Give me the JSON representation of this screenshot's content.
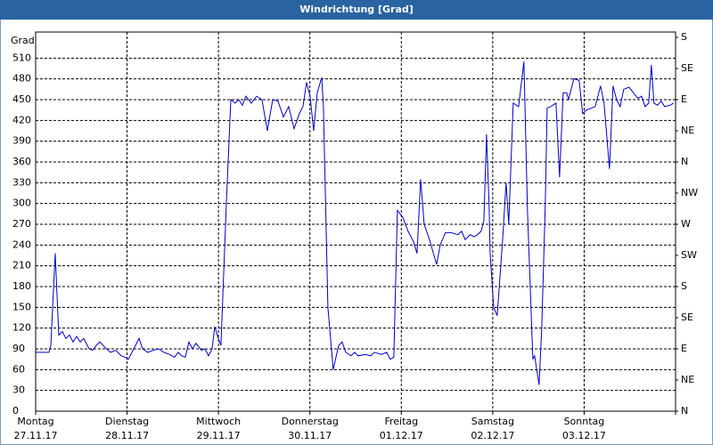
{
  "chart_data": {
    "type": "line",
    "title": "Windrichtung [Grad]",
    "ylabel": "Grad",
    "color": "#0000c8",
    "grid": true,
    "xlim": [
      0,
      7
    ],
    "xticks": [
      {
        "value": 0,
        "label": "Montag",
        "sublabel": "27.11.17"
      },
      {
        "value": 1,
        "label": "Dienstag",
        "sublabel": "28.11.17"
      },
      {
        "value": 2,
        "label": "Mittwoch",
        "sublabel": "29.11.17"
      },
      {
        "value": 3,
        "label": "Donnerstag",
        "sublabel": "30.11.17"
      },
      {
        "value": 4,
        "label": "Freitag",
        "sublabel": "01.12.17"
      },
      {
        "value": 5,
        "label": "Samstag",
        "sublabel": "02.12.17"
      },
      {
        "value": 6,
        "label": "Sonntag",
        "sublabel": "03.12.17"
      },
      {
        "value": 7,
        "label": "",
        "sublabel": ""
      }
    ],
    "ylim": [
      0,
      540
    ],
    "yticks": [
      0,
      30,
      60,
      90,
      120,
      150,
      180,
      210,
      240,
      270,
      300,
      330,
      360,
      390,
      420,
      450,
      480,
      510
    ],
    "y2lim": [
      0,
      540
    ],
    "y2ticks": [
      {
        "value": 0,
        "label": "N"
      },
      {
        "value": 45,
        "label": "NE"
      },
      {
        "value": 90,
        "label": "E"
      },
      {
        "value": 135,
        "label": "SE"
      },
      {
        "value": 180,
        "label": "S"
      },
      {
        "value": 225,
        "label": "SW"
      },
      {
        "value": 270,
        "label": "W"
      },
      {
        "value": 315,
        "label": "NW"
      },
      {
        "value": 360,
        "label": "N"
      },
      {
        "value": 405,
        "label": "NE"
      },
      {
        "value": 450,
        "label": "E"
      },
      {
        "value": 495,
        "label": "SE"
      },
      {
        "value": 540,
        "label": "S"
      }
    ],
    "x": [
      0,
      0.146,
      0.166,
      0.214,
      0.253,
      0.292,
      0.331,
      0.37,
      0.409,
      0.448,
      0.487,
      0.526,
      0.585,
      0.624,
      0.663,
      0.702,
      0.76,
      0.819,
      0.877,
      0.936,
      0.975,
      1.014,
      1.053,
      1.092,
      1.131,
      1.17,
      1.228,
      1.287,
      1.345,
      1.404,
      1.462,
      1.52,
      1.559,
      1.598,
      1.637,
      1.676,
      1.715,
      1.754,
      1.813,
      1.852,
      1.891,
      1.93,
      1.959,
      1.998,
      2.027,
      2.086,
      2.135,
      2.183,
      2.222,
      2.261,
      2.3,
      2.359,
      2.417,
      2.476,
      2.534,
      2.593,
      2.651,
      2.71,
      2.768,
      2.827,
      2.885,
      2.924,
      2.963,
      3.002,
      3.041,
      3.08,
      3.129,
      3.148,
      3.197,
      3.255,
      3.314,
      3.353,
      3.392,
      3.45,
      3.489,
      3.528,
      3.606,
      3.665,
      3.704,
      3.782,
      3.84,
      3.879,
      3.918,
      3.957,
      4.016,
      4.074,
      4.133,
      4.172,
      4.211,
      4.25,
      4.308,
      4.386,
      4.425,
      4.483,
      4.542,
      4.62,
      4.659,
      4.698,
      4.756,
      4.795,
      4.834,
      4.873,
      4.903,
      4.932,
      4.961,
      4.971,
      5.01,
      5.049,
      5.107,
      5.146,
      5.175,
      5.224,
      5.283,
      5.341,
      5.38,
      5.439,
      5.458,
      5.507,
      5.536,
      5.575,
      5.595,
      5.634,
      5.692,
      5.731,
      5.77,
      5.809,
      5.829,
      5.887,
      5.945,
      5.984,
      6.023,
      6.082,
      6.121,
      6.179,
      6.218,
      6.277,
      6.316,
      6.355,
      6.394,
      6.433,
      6.491,
      6.55,
      6.589,
      6.628,
      6.667,
      6.706,
      6.735,
      6.764,
      6.803,
      6.842,
      6.881,
      6.94,
      6.979
    ],
    "values": [
      85,
      85,
      95,
      228,
      110,
      115,
      105,
      110,
      100,
      108,
      100,
      105,
      90,
      88,
      95,
      100,
      92,
      85,
      88,
      80,
      78,
      75,
      85,
      95,
      105,
      90,
      85,
      88,
      90,
      85,
      82,
      78,
      85,
      80,
      78,
      100,
      90,
      98,
      88,
      90,
      80,
      90,
      122,
      105,
      95,
      300,
      450,
      445,
      450,
      442,
      455,
      445,
      455,
      450,
      405,
      450,
      448,
      425,
      440,
      408,
      430,
      440,
      475,
      455,
      405,
      460,
      482,
      440,
      150,
      60,
      95,
      100,
      85,
      80,
      85,
      80,
      82,
      80,
      85,
      82,
      85,
      75,
      78,
      290,
      280,
      260,
      245,
      228,
      335,
      270,
      248,
      212,
      240,
      258,
      258,
      255,
      260,
      248,
      255,
      252,
      255,
      260,
      275,
      400,
      295,
      230,
      150,
      138,
      245,
      330,
      270,
      445,
      440,
      505,
      290,
      75,
      80,
      38,
      120,
      300,
      438,
      440,
      445,
      338,
      460,
      460,
      450,
      480,
      478,
      430,
      435,
      438,
      440,
      470,
      445,
      350,
      470,
      450,
      440,
      465,
      468,
      458,
      452,
      455,
      440,
      445,
      500,
      445,
      442,
      448,
      440,
      442,
      445
    ]
  }
}
